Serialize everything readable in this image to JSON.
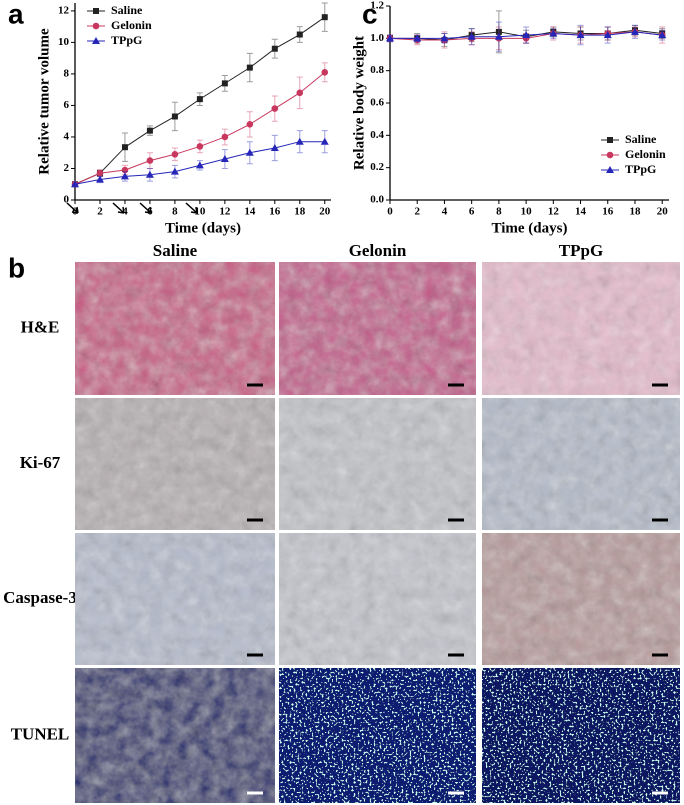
{
  "chart_data": [
    {
      "type": "line",
      "panel_label": "a",
      "x_label": "Time (days)",
      "y_label": "Relative tumor volume",
      "x": [
        0,
        2,
        4,
        6,
        8,
        10,
        12,
        14,
        16,
        18,
        20
      ],
      "xlim": [
        0,
        20.5
      ],
      "xticks": [
        0,
        2,
        4,
        6,
        8,
        10,
        12,
        14,
        16,
        18,
        20
      ],
      "ylim": [
        0,
        12.5
      ],
      "yticks": [
        0,
        2,
        4,
        6,
        8,
        10,
        12
      ],
      "legend": "top-left",
      "series": [
        {
          "name": "Saline",
          "color": "#222222",
          "marker": "square",
          "values": [
            1,
            1.7,
            3.35,
            4.4,
            5.3,
            6.4,
            7.4,
            8.4,
            9.6,
            10.5,
            11.6
          ],
          "errors": [
            0,
            0.2,
            0.9,
            0.3,
            0.9,
            0.4,
            0.5,
            0.9,
            0.6,
            0.5,
            0.9
          ]
        },
        {
          "name": "Gelonin",
          "color": "#c8385e",
          "marker": "circle",
          "values": [
            1,
            1.7,
            1.9,
            2.5,
            2.9,
            3.4,
            4.0,
            4.8,
            5.8,
            6.8,
            8.1
          ],
          "errors": [
            0,
            0.2,
            0.3,
            0.5,
            0.4,
            0.4,
            0.5,
            0.8,
            0.8,
            1.0,
            0.6
          ]
        },
        {
          "name": "TPpG",
          "color": "#2626b8",
          "marker": "triangle",
          "values": [
            1,
            1.3,
            1.5,
            1.6,
            1.8,
            2.2,
            2.6,
            3.0,
            3.3,
            3.7,
            3.7
          ],
          "errors": [
            0,
            0.2,
            0.3,
            0.4,
            0.4,
            0.3,
            0.6,
            0.7,
            0.8,
            0.7,
            0.7
          ]
        }
      ]
    },
    {
      "type": "line",
      "panel_label": "c",
      "x_label": "Time (days)",
      "y_label": "Relative body weight",
      "x": [
        0,
        2,
        4,
        6,
        8,
        10,
        12,
        14,
        16,
        18,
        20
      ],
      "xlim": [
        0,
        20.5
      ],
      "xticks": [
        0,
        2,
        4,
        6,
        8,
        10,
        12,
        14,
        16,
        18,
        20
      ],
      "ylim": [
        0,
        1.2
      ],
      "yticks": [
        {
          "value": 0,
          "label": "0.0"
        },
        0.2,
        0.4,
        0.6,
        0.8,
        {
          "value": 1,
          "label": "1.0"
        },
        1.2
      ],
      "legend": "bottom-right",
      "series": [
        {
          "name": "Saline",
          "color": "#222222",
          "marker": "square",
          "values": [
            1,
            1,
            0.99,
            1.02,
            1.04,
            1.01,
            1.04,
            1.03,
            1.03,
            1.05,
            1.03
          ],
          "errors": [
            0.02,
            0.03,
            0.04,
            0.04,
            0.13,
            0.04,
            0.03,
            0.04,
            0.04,
            0.03,
            0.03
          ]
        },
        {
          "name": "Gelonin",
          "color": "#c8385e",
          "marker": "circle",
          "values": [
            1,
            0.99,
            0.99,
            1.0,
            1.0,
            1.0,
            1.03,
            1.02,
            1.03,
            1.04,
            1.02
          ],
          "errors": [
            0.02,
            0.03,
            0.05,
            0.04,
            0.07,
            0.03,
            0.04,
            0.05,
            0.04,
            0.03,
            0.05
          ]
        },
        {
          "name": "TPpG",
          "color": "#2626b8",
          "marker": "triangle",
          "values": [
            1,
            1,
            1,
            1.01,
            1.01,
            1.02,
            1.03,
            1.02,
            1.02,
            1.04,
            1.02
          ],
          "errors": [
            0.02,
            0.02,
            0.03,
            0.05,
            0.09,
            0.05,
            0.03,
            0.06,
            0.05,
            0.04,
            0.03
          ]
        }
      ]
    }
  ],
  "images": {
    "panel_label": "b",
    "columns": [
      "Saline",
      "Gelonin",
      "TPpG"
    ],
    "rows": [
      "H&E",
      "Ki-67",
      "Caspase-3",
      "TUNEL"
    ]
  }
}
